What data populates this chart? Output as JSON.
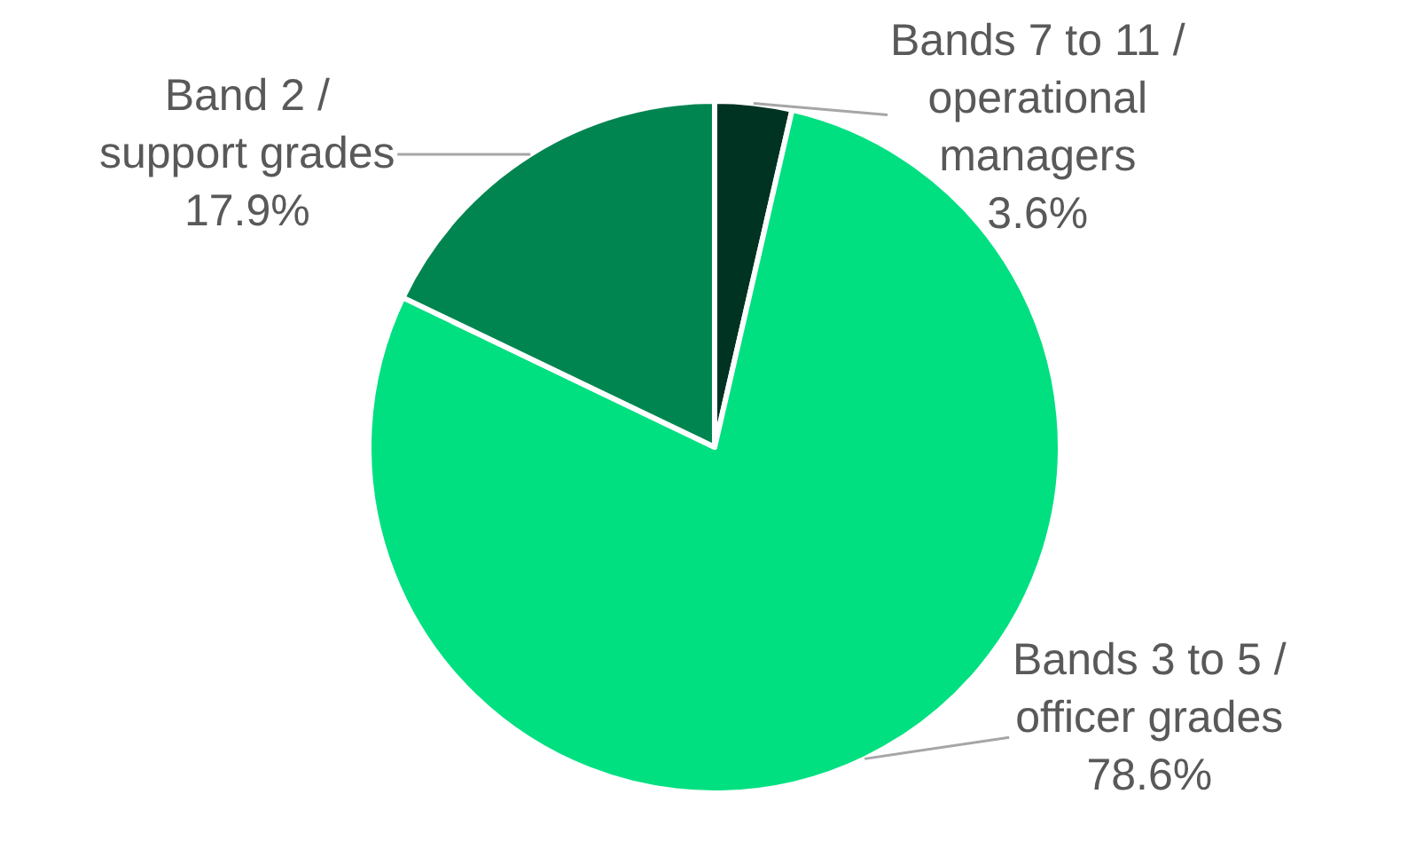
{
  "chart_data": {
    "type": "pie",
    "categories": [
      "Bands 7 to 11 / operational managers",
      "Bands 3 to 5 / officer grades",
      "Band 2 / support grades"
    ],
    "values": [
      3.6,
      78.6,
      17.9
    ],
    "value_labels": [
      "3.6%",
      "78.6%",
      "17.9%"
    ],
    "colors": [
      "#003322",
      "#00e080",
      "#008550"
    ],
    "legend": false
  }
}
